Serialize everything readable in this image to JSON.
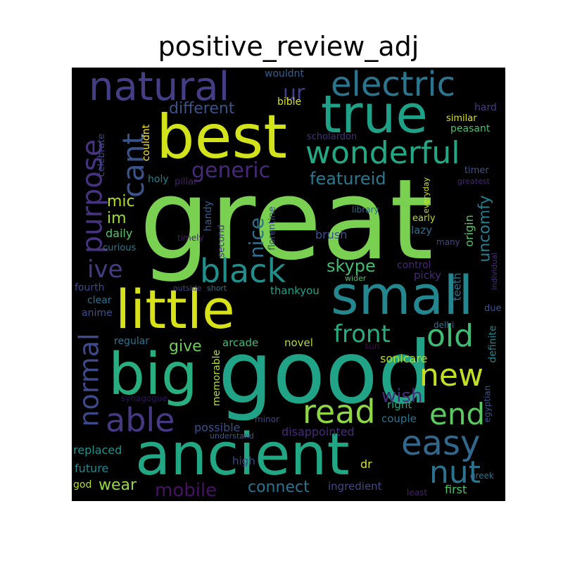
{
  "figure": {
    "title": "positive_review_adj"
  },
  "wordcloud": {
    "background": "#000000",
    "words": [
      {
        "text": "great",
        "color": "#7ad151"
      },
      {
        "text": "good",
        "color": "#20a386"
      },
      {
        "text": "best",
        "color": "#d2e21b"
      },
      {
        "text": "little",
        "color": "#d7e219"
      },
      {
        "text": "ancient",
        "color": "#22a785"
      },
      {
        "text": "big",
        "color": "#29af7f"
      },
      {
        "text": "small",
        "color": "#24868e"
      },
      {
        "text": "true",
        "color": "#1fa187"
      },
      {
        "text": "natural",
        "color": "#433e85"
      },
      {
        "text": "electric",
        "color": "#2b758e"
      },
      {
        "text": "wonderful",
        "color": "#22a884"
      },
      {
        "text": "purpose",
        "color": "#46327e"
      },
      {
        "text": "cant",
        "color": "#3a538b"
      },
      {
        "text": "black",
        "color": "#21908d"
      },
      {
        "text": "normal",
        "color": "#3e4989"
      },
      {
        "text": "able",
        "color": "#443a83"
      },
      {
        "text": "read",
        "color": "#8fd744"
      },
      {
        "text": "easy",
        "color": "#31688e"
      },
      {
        "text": "old",
        "color": "#3fbc73"
      },
      {
        "text": "new",
        "color": "#c2df23"
      },
      {
        "text": "end",
        "color": "#5ec962"
      },
      {
        "text": "nut",
        "color": "#2c728e"
      },
      {
        "text": "front",
        "color": "#27ad81"
      },
      {
        "text": "generic",
        "color": "#482878"
      },
      {
        "text": "different",
        "color": "#3b528b"
      },
      {
        "text": "featureid",
        "color": "#2a788e"
      },
      {
        "text": "uncomfy",
        "color": "#287d8e"
      },
      {
        "text": "ive",
        "color": "#433d84"
      },
      {
        "text": "skype",
        "color": "#40bd72"
      },
      {
        "text": "nice",
        "color": "#2e6f8e"
      },
      {
        "text": "mic",
        "color": "#b5de2b"
      },
      {
        "text": "im",
        "color": "#a2da37"
      },
      {
        "text": "give",
        "color": "#6ece58"
      },
      {
        "text": "wish",
        "color": "#472c7a"
      },
      {
        "text": "mobile",
        "color": "#471164"
      },
      {
        "text": "wear",
        "color": "#95d840"
      },
      {
        "text": "connect",
        "color": "#2c738e"
      },
      {
        "text": "ur",
        "color": "#433e85"
      },
      {
        "text": "wouldnt",
        "color": "#355f8d"
      },
      {
        "text": "bible",
        "color": "#d8e219"
      },
      {
        "text": "couldnt",
        "color": "#fde725"
      },
      {
        "text": "celebrate",
        "color": "#3e4a89"
      },
      {
        "text": "scholardon",
        "color": "#46307e"
      },
      {
        "text": "hard",
        "color": "#433e85"
      },
      {
        "text": "similar",
        "color": "#dde318"
      },
      {
        "text": "peasant",
        "color": "#46c06f"
      },
      {
        "text": "timer",
        "color": "#3b528b"
      },
      {
        "text": "greatest",
        "color": "#482475"
      },
      {
        "text": "holy",
        "color": "#277f8e"
      },
      {
        "text": "pillar",
        "color": "#481c6e"
      },
      {
        "text": "handy",
        "color": "#355e8d"
      },
      {
        "text": "florentine",
        "color": "#3e4c8a"
      },
      {
        "text": "library",
        "color": "#2f6b8e"
      },
      {
        "text": "everyday",
        "color": "#d8e219"
      },
      {
        "text": "early",
        "color": "#b8de29"
      },
      {
        "text": "daily",
        "color": "#54c568"
      },
      {
        "text": "timely",
        "color": "#481a6c"
      },
      {
        "text": "second",
        "color": "#453581"
      },
      {
        "text": "brush",
        "color": "#3b528b"
      },
      {
        "text": "lazy",
        "color": "#2e6e8e"
      },
      {
        "text": "many",
        "color": "#414487"
      },
      {
        "text": "origin",
        "color": "#56c667"
      },
      {
        "text": "curious",
        "color": "#2a778e"
      },
      {
        "text": "individual",
        "color": "#472d7b"
      },
      {
        "text": "control",
        "color": "#482475"
      },
      {
        "text": "picky",
        "color": "#482878"
      },
      {
        "text": "fourth",
        "color": "#3e4989"
      },
      {
        "text": "outside",
        "color": "#404688"
      },
      {
        "text": "short",
        "color": "#2c718e"
      },
      {
        "text": "wider",
        "color": "#4ac16d"
      },
      {
        "text": "thankyou",
        "color": "#1fa187"
      },
      {
        "text": "teeth",
        "color": "#2c738e"
      },
      {
        "text": "clear",
        "color": "#2d708e"
      },
      {
        "text": "due",
        "color": "#3b528b"
      },
      {
        "text": "anime",
        "color": "#3b528b"
      },
      {
        "text": "delhi",
        "color": "#2d708e"
      },
      {
        "text": "regular",
        "color": "#2c738e"
      },
      {
        "text": "arcade",
        "color": "#3fbc73"
      },
      {
        "text": "novel",
        "color": "#b0dd2f"
      },
      {
        "text": "definite",
        "color": "#24868e"
      },
      {
        "text": "sun",
        "color": "#440154"
      },
      {
        "text": "sonicare",
        "color": "#b5de2b"
      },
      {
        "text": "memorable",
        "color": "#b2dd2d"
      },
      {
        "text": "egyptian",
        "color": "#3b528b"
      },
      {
        "text": "synagogue",
        "color": "#2d1160"
      },
      {
        "text": "right",
        "color": "#22a884"
      },
      {
        "text": "minor",
        "color": "#3f4788"
      },
      {
        "text": "possible",
        "color": "#3b518b"
      },
      {
        "text": "couple",
        "color": "#2a768e"
      },
      {
        "text": "understand",
        "color": "#38598c"
      },
      {
        "text": "disappointed",
        "color": "#472a7a"
      },
      {
        "text": "replaced",
        "color": "#21918c"
      },
      {
        "text": "high",
        "color": "#3e4989"
      },
      {
        "text": "dr",
        "color": "#d5e21a"
      },
      {
        "text": "future",
        "color": "#23898e"
      },
      {
        "text": "greek",
        "color": "#2b748e"
      },
      {
        "text": "god",
        "color": "#b5de2b"
      },
      {
        "text": "ingredient",
        "color": "#3e4a89"
      },
      {
        "text": "first",
        "color": "#4ec36b"
      },
      {
        "text": "least",
        "color": "#481f70"
      }
    ]
  }
}
